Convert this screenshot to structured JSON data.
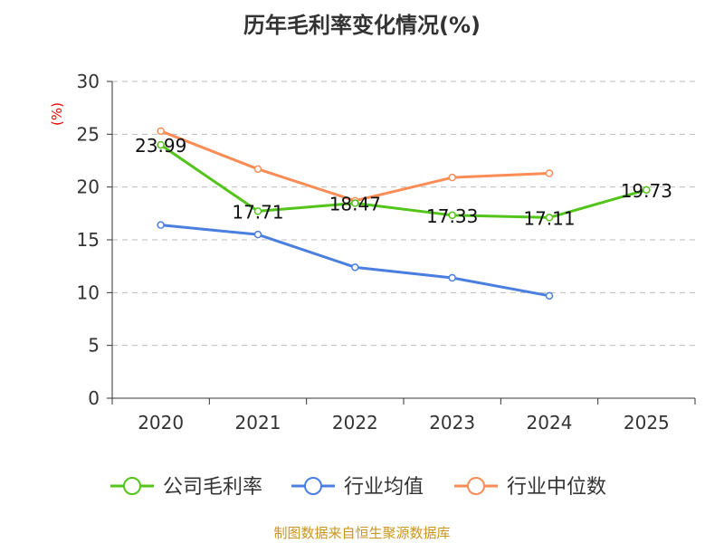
{
  "chart_data": {
    "type": "line",
    "title": "历年毛利率变化情况(%)",
    "ylabel": "(%)",
    "xlabel": "",
    "categories": [
      "2020",
      "2021",
      "2022",
      "2023",
      "2024",
      "2025"
    ],
    "ylim": [
      0,
      30
    ],
    "yticks": [
      0,
      5,
      10,
      15,
      20,
      25,
      30
    ],
    "grid": true,
    "legend_position": "bottom",
    "series": [
      {
        "name": "公司毛利率",
        "color": "#52c41a",
        "values": [
          23.99,
          17.71,
          18.47,
          17.33,
          17.11,
          19.73
        ],
        "labels": [
          "23.99",
          "17.71",
          "18.47",
          "17.33",
          "17.11",
          "19.73"
        ]
      },
      {
        "name": "行业均值",
        "color": "#4a7fe0",
        "values": [
          16.4,
          15.5,
          12.4,
          11.4,
          9.7,
          null
        ]
      },
      {
        "name": "行业中位数",
        "color": "#fb8c55",
        "values": [
          25.3,
          21.7,
          18.7,
          20.9,
          21.3,
          null
        ]
      }
    ]
  },
  "footer": "制图数据来自恒生聚源数据库"
}
